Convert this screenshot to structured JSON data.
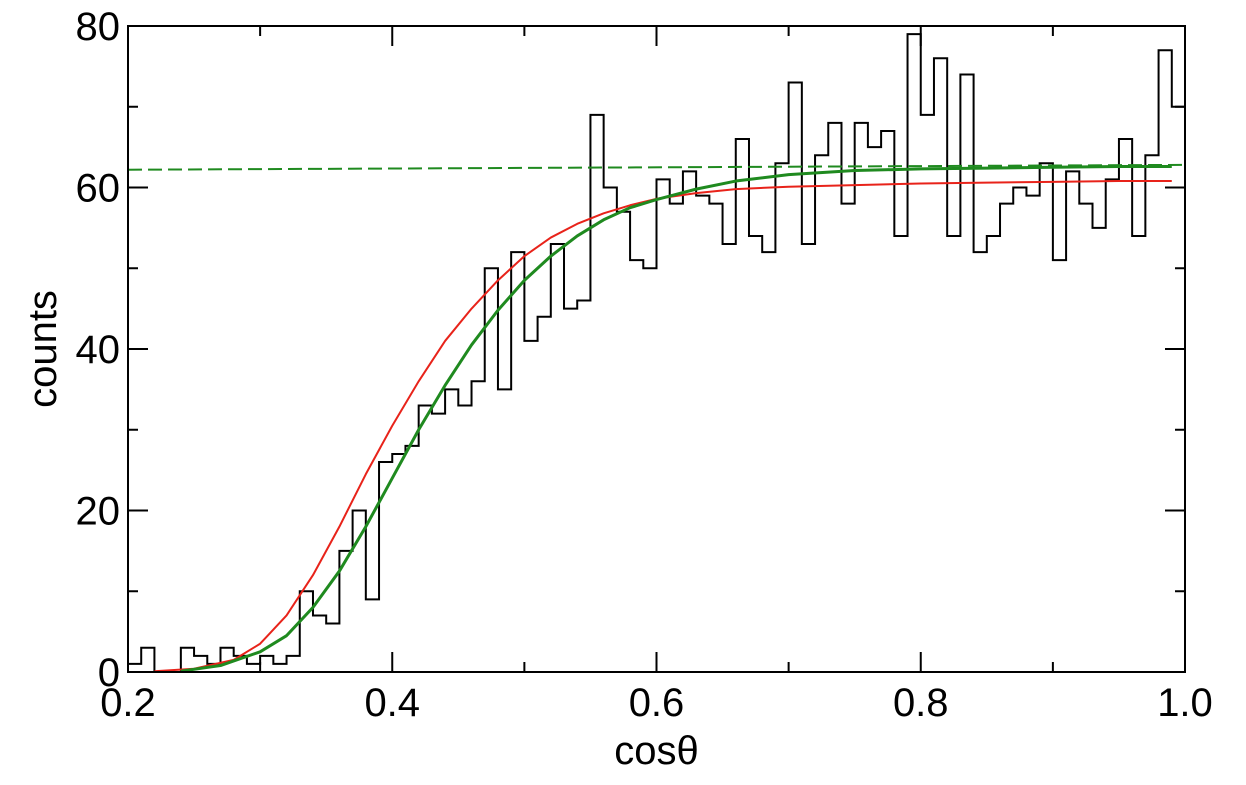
{
  "chart_data": {
    "type": "line",
    "xlabel": "cosθ",
    "ylabel": "counts",
    "xlim": [
      0.2,
      1.0
    ],
    "ylim": [
      0,
      80
    ],
    "grid": false,
    "x_ticks": [
      {
        "value": 0.2,
        "label": "0.2"
      },
      {
        "value": 0.4,
        "label": "0.4"
      },
      {
        "value": 0.6,
        "label": "0.6"
      },
      {
        "value": 0.8,
        "label": "0.8"
      },
      {
        "value": 1.0,
        "label": "1.0"
      }
    ],
    "y_ticks": [
      {
        "value": 0,
        "label": "0"
      },
      {
        "value": 20,
        "label": "20"
      },
      {
        "value": 40,
        "label": "40"
      },
      {
        "value": 60,
        "label": "60"
      },
      {
        "value": 80,
        "label": "80"
      }
    ],
    "series": [
      {
        "kind": "histogram",
        "color": "#000000",
        "bin_width": 0.01,
        "bin_start": 0.2,
        "values": [
          1,
          3,
          0,
          0,
          3,
          2,
          1,
          3,
          2,
          1,
          2,
          1,
          2,
          10,
          7,
          6,
          15,
          20,
          9,
          26,
          27,
          28,
          33,
          32,
          35,
          33,
          36,
          50,
          35,
          52,
          41,
          44,
          53,
          45,
          46,
          69,
          60,
          57,
          51,
          50,
          61,
          58,
          62,
          59,
          58,
          53,
          66,
          54,
          52,
          63,
          73,
          53,
          64,
          68,
          58,
          68,
          65,
          67,
          54,
          79,
          69,
          76,
          54,
          74,
          52,
          54,
          58,
          60,
          59,
          63,
          51,
          62,
          58,
          55,
          61,
          66,
          54,
          64,
          77,
          70
        ]
      },
      {
        "kind": "fit",
        "color": "#e8231a",
        "style": "solid",
        "x": [
          0.22,
          0.25,
          0.28,
          0.3,
          0.32,
          0.34,
          0.36,
          0.38,
          0.4,
          0.42,
          0.44,
          0.46,
          0.48,
          0.5,
          0.52,
          0.54,
          0.56,
          0.58,
          0.6,
          0.63,
          0.66,
          0.7,
          0.75,
          0.8,
          0.85,
          0.9,
          0.95,
          0.99
        ],
        "y": [
          0.1,
          0.4,
          1.5,
          3.5,
          7.0,
          12.0,
          18.0,
          24.5,
          30.5,
          36.0,
          41.0,
          45.0,
          48.5,
          51.5,
          53.8,
          55.5,
          56.8,
          57.8,
          58.6,
          59.3,
          59.8,
          60.1,
          60.3,
          60.5,
          60.6,
          60.7,
          60.8,
          60.8
        ]
      },
      {
        "kind": "fit",
        "color": "#1f8a1f",
        "style": "solid",
        "x": [
          0.24,
          0.27,
          0.3,
          0.32,
          0.34,
          0.36,
          0.38,
          0.4,
          0.42,
          0.44,
          0.46,
          0.48,
          0.5,
          0.52,
          0.54,
          0.56,
          0.58,
          0.6,
          0.63,
          0.66,
          0.7,
          0.75,
          0.8,
          0.85,
          0.9,
          0.95,
          0.99
        ],
        "y": [
          0.1,
          0.8,
          2.5,
          4.5,
          8.0,
          12.5,
          18.0,
          24.0,
          30.0,
          35.5,
          40.5,
          44.8,
          48.5,
          51.5,
          54.0,
          56.0,
          57.5,
          58.5,
          59.8,
          60.8,
          61.6,
          62.1,
          62.3,
          62.4,
          62.5,
          62.6,
          62.6
        ]
      },
      {
        "kind": "asymptote",
        "color": "#1f8a1f",
        "style": "dashed",
        "x": [
          0.2,
          1.0
        ],
        "y": [
          62.2,
          62.8
        ]
      }
    ]
  }
}
